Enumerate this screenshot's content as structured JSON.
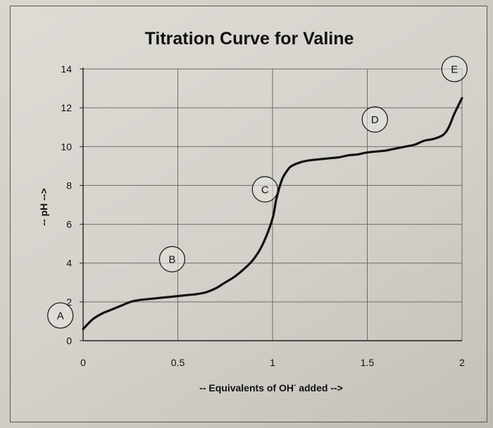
{
  "chart_data": {
    "type": "line",
    "title": "Titration Curve for Valine",
    "xlabel": "-- Equivalents of OH",
    "xlabel_sup": "-",
    "xlabel_suffix": " added -->",
    "ylabel": "-- pH -->",
    "xlim": [
      0,
      2
    ],
    "ylim": [
      0,
      14
    ],
    "x_ticks": [
      0,
      0.5,
      1,
      1.5,
      2
    ],
    "x_tick_labels": [
      "0",
      "0.5",
      "1",
      "1.5",
      "2"
    ],
    "y_ticks": [
      0,
      2,
      4,
      6,
      8,
      10,
      12,
      14
    ],
    "y_tick_labels": [
      "0",
      "2",
      "4",
      "6",
      "8",
      "10",
      "12",
      "14"
    ],
    "grid": true,
    "series": [
      {
        "x": [
          0,
          0.05,
          0.1,
          0.15,
          0.2,
          0.25,
          0.3,
          0.35,
          0.4,
          0.45,
          0.5,
          0.55,
          0.6,
          0.65,
          0.7,
          0.75,
          0.8,
          0.85,
          0.9,
          0.95,
          1.0,
          1.02,
          1.05,
          1.08,
          1.1,
          1.15,
          1.2,
          1.25,
          1.3,
          1.35,
          1.4,
          1.45,
          1.5,
          1.55,
          1.6,
          1.65,
          1.7,
          1.75,
          1.8,
          1.85,
          1.9,
          1.93,
          1.96,
          2.0
        ],
        "y": [
          0.6,
          1.1,
          1.4,
          1.6,
          1.8,
          2.0,
          2.1,
          2.15,
          2.2,
          2.25,
          2.3,
          2.35,
          2.4,
          2.5,
          2.7,
          3.0,
          3.3,
          3.7,
          4.2,
          5.0,
          6.3,
          7.3,
          8.3,
          8.8,
          9.0,
          9.2,
          9.3,
          9.35,
          9.4,
          9.45,
          9.55,
          9.6,
          9.7,
          9.75,
          9.8,
          9.9,
          10.0,
          10.1,
          10.3,
          10.4,
          10.6,
          11.0,
          11.7,
          12.5
        ]
      }
    ],
    "annotations": [
      {
        "label": "A",
        "x": -0.12,
        "y": 1.3
      },
      {
        "label": "B",
        "x": 0.47,
        "y": 4.2
      },
      {
        "label": "C",
        "x": 0.96,
        "y": 7.8
      },
      {
        "label": "D",
        "x": 1.54,
        "y": 11.4
      },
      {
        "label": "E",
        "x": 1.96,
        "y": 14.0
      }
    ]
  }
}
